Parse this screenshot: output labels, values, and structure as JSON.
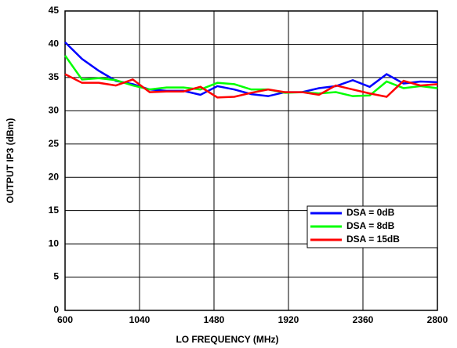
{
  "chart_data": {
    "type": "line",
    "x_label": "LO FREQUENCY (MHz)",
    "y_label": "OUTPUT IP3 (dBm)",
    "x": [
      600,
      700,
      800,
      900,
      1000,
      1100,
      1200,
      1300,
      1400,
      1500,
      1600,
      1700,
      1800,
      1900,
      2000,
      2100,
      2200,
      2300,
      2400,
      2500,
      2600,
      2700,
      2800
    ],
    "series": [
      {
        "name": "DSA = 0dB",
        "color": "#0000ff",
        "values": [
          40.3,
          37.8,
          36,
          34.5,
          34,
          33.2,
          33,
          33,
          32.4,
          33.7,
          33.2,
          32.5,
          32.2,
          32.8,
          32.8,
          33.4,
          33.7,
          34.6,
          33.6,
          35.5,
          34.1,
          34.4,
          34.3
        ]
      },
      {
        "name": "DSA = 8dB",
        "color": "#00ff00",
        "values": [
          38.3,
          34.7,
          34.9,
          34.6,
          33.8,
          33.2,
          33.5,
          33.5,
          33.2,
          34.2,
          34,
          33.2,
          33.2,
          32.7,
          32.8,
          32.6,
          32.8,
          32.2,
          32.3,
          34.4,
          33.4,
          33.7,
          33.4
        ]
      },
      {
        "name": "DSA = 15dB",
        "color": "#ff0000",
        "values": [
          35.5,
          34.2,
          34.2,
          33.8,
          34.7,
          32.8,
          32.9,
          32.9,
          33.6,
          32,
          32.1,
          32.7,
          33.2,
          32.8,
          32.8,
          32.4,
          33.8,
          33.2,
          32.6,
          32.1,
          34.5,
          33.8,
          34.0
        ]
      }
    ],
    "xlim": [
      600,
      2800
    ],
    "xticks": [
      600,
      1040,
      1480,
      1920,
      2360,
      2800
    ],
    "ylim": [
      0,
      45
    ],
    "yticks": [
      0,
      5,
      10,
      15,
      20,
      25,
      30,
      35,
      40,
      45
    ],
    "grid": true,
    "legend": "right"
  }
}
